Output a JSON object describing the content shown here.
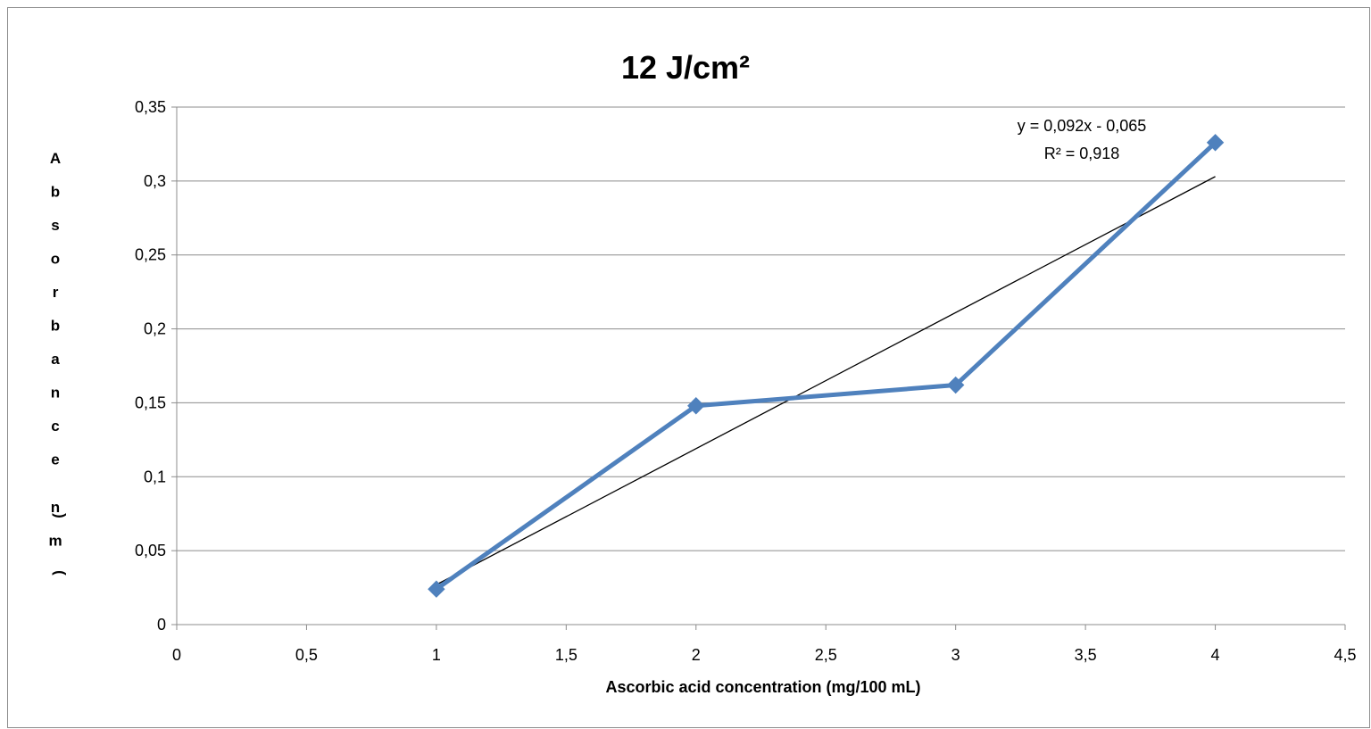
{
  "chart_data": {
    "type": "line",
    "title": "12 J/cm²",
    "xlabel": "Ascorbic acid concentration (mg/100 mL)",
    "ylabel": "Absorbance (nm)",
    "xlim": [
      0,
      4.5
    ],
    "ylim": [
      0,
      0.35
    ],
    "x_ticks": [
      "0",
      "0,5",
      "1",
      "1,5",
      "2",
      "2,5",
      "3",
      "3,5",
      "4",
      "4,5"
    ],
    "y_ticks": [
      "0",
      "0,05",
      "0,1",
      "0,15",
      "0,2",
      "0,25",
      "0,3",
      "0,35"
    ],
    "grid": "horizontal",
    "series": [
      {
        "x": [
          1,
          2,
          3,
          4
        ],
        "y": [
          0.024,
          0.148,
          0.162,
          0.326
        ],
        "color": "#4f81bd",
        "marker": "diamond"
      }
    ],
    "trendline": {
      "type": "linear",
      "slope": 0.092,
      "intercept": -0.065,
      "x_range": [
        1,
        4
      ],
      "color": "#000000",
      "equation": "y = 0,092x - 0,065",
      "r_squared": "R² = 0,918"
    }
  }
}
